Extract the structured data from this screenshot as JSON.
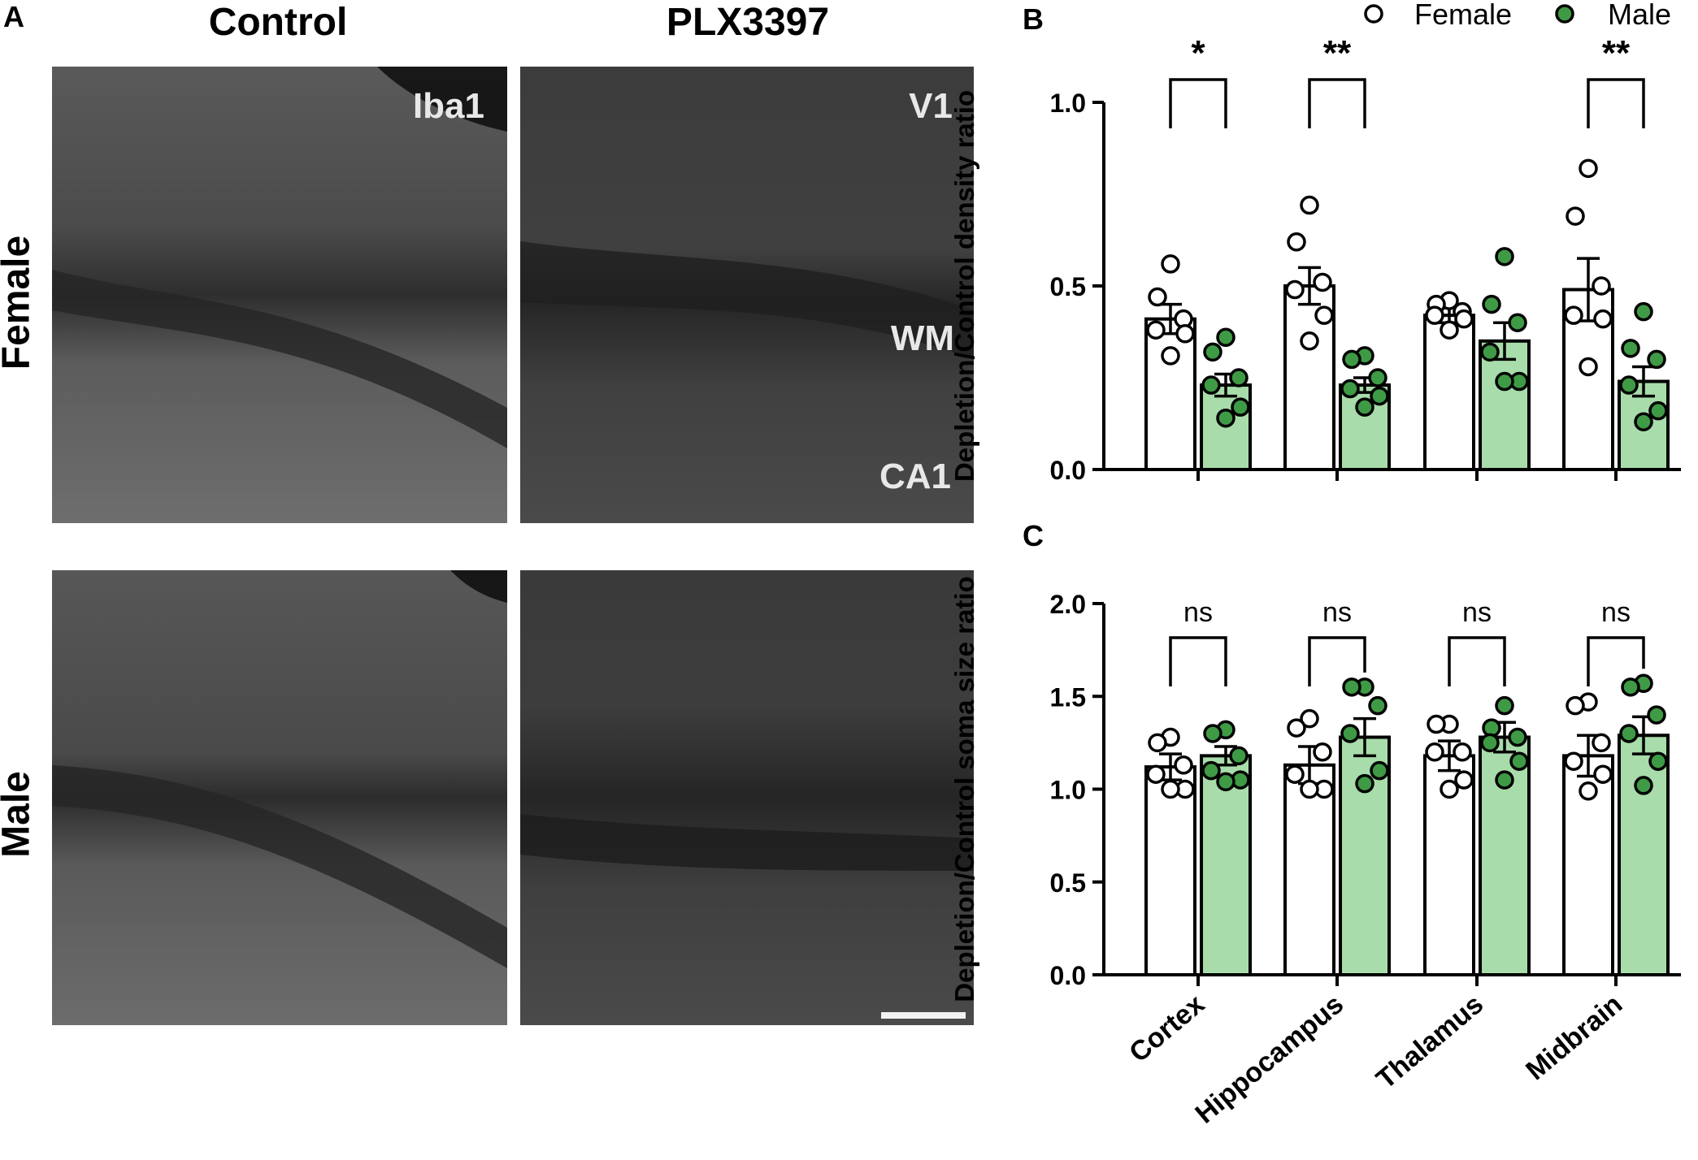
{
  "panelA": {
    "letter": "A",
    "col_labels": [
      "Control",
      "PLX3397"
    ],
    "row_labels": [
      "Female",
      "Male"
    ],
    "image_labels": {
      "marker": "Iba1",
      "region_top": "V1",
      "region_mid": "WM",
      "region_bottom": "CA1"
    }
  },
  "legend": {
    "female": "Female",
    "male": "Male"
  },
  "colors": {
    "female_fill": "#ffffff",
    "male_fill": "#a8dcaa",
    "male_point": "#3f9a45",
    "axis": "#000000"
  },
  "chart_data": [
    {
      "panel": "B",
      "type": "bar",
      "categories": [
        "Cortex",
        "Hippocampus",
        "Thalamus",
        "Midbrain"
      ],
      "ylabel": "Depletion/Control density ratio",
      "ylim": [
        0,
        1.0
      ],
      "yticks": [
        "0.0",
        "0.5",
        "1.0"
      ],
      "series": [
        {
          "name": "Female",
          "values": [
            0.41,
            0.5,
            0.42,
            0.49
          ],
          "sem": [
            0.04,
            0.05,
            0.02,
            0.085
          ],
          "points": [
            [
              0.56,
              0.47,
              0.41,
              0.38,
              0.37,
              0.31
            ],
            [
              0.72,
              0.62,
              0.51,
              0.49,
              0.42,
              0.35
            ],
            [
              0.46,
              0.45,
              0.43,
              0.42,
              0.41,
              0.38
            ],
            [
              0.82,
              0.69,
              0.5,
              0.42,
              0.41,
              0.28
            ]
          ]
        },
        {
          "name": "Male",
          "values": [
            0.23,
            0.23,
            0.35,
            0.24
          ],
          "sem": [
            0.03,
            0.02,
            0.05,
            0.04
          ],
          "points": [
            [
              0.36,
              0.32,
              0.25,
              0.23,
              0.17,
              0.14
            ],
            [
              0.31,
              0.3,
              0.25,
              0.22,
              0.2,
              0.17
            ],
            [
              0.58,
              0.45,
              0.4,
              0.32,
              0.24,
              0.24
            ],
            [
              0.43,
              0.33,
              0.3,
              0.23,
              0.16,
              0.13
            ]
          ]
        }
      ],
      "significance": [
        "*",
        "**",
        "",
        "**"
      ]
    },
    {
      "panel": "C",
      "type": "bar",
      "categories": [
        "Cortex",
        "Hippocampus",
        "Thalamus",
        "Midbrain"
      ],
      "ylabel": "Depletion/Control soma size ratio",
      "ylim": [
        0,
        2.0
      ],
      "yticks": [
        "0.0",
        "0.5",
        "1.0",
        "1.5",
        "2.0"
      ],
      "series": [
        {
          "name": "Female",
          "values": [
            1.12,
            1.13,
            1.18,
            1.18
          ],
          "sem": [
            0.07,
            0.1,
            0.08,
            0.11
          ],
          "points": [
            [
              1.28,
              1.25,
              1.13,
              1.08,
              1.0,
              1.0
            ],
            [
              1.38,
              1.33,
              1.2,
              1.08,
              1.0,
              1.0
            ],
            [
              1.35,
              1.35,
              1.2,
              1.2,
              1.05,
              1.0
            ],
            [
              1.47,
              1.45,
              1.25,
              1.15,
              1.08,
              0.99
            ]
          ]
        },
        {
          "name": "Male",
          "values": [
            1.18,
            1.28,
            1.28,
            1.29
          ],
          "sem": [
            0.05,
            0.1,
            0.08,
            0.1
          ],
          "points": [
            [
              1.32,
              1.3,
              1.18,
              1.1,
              1.05,
              1.04
            ],
            [
              1.55,
              1.55,
              1.45,
              1.3,
              1.1,
              1.03
            ],
            [
              1.45,
              1.33,
              1.28,
              1.25,
              1.15,
              1.05
            ],
            [
              1.57,
              1.55,
              1.4,
              1.3,
              1.15,
              1.02
            ]
          ]
        }
      ],
      "significance": [
        "ns",
        "ns",
        "ns",
        "ns"
      ]
    }
  ]
}
